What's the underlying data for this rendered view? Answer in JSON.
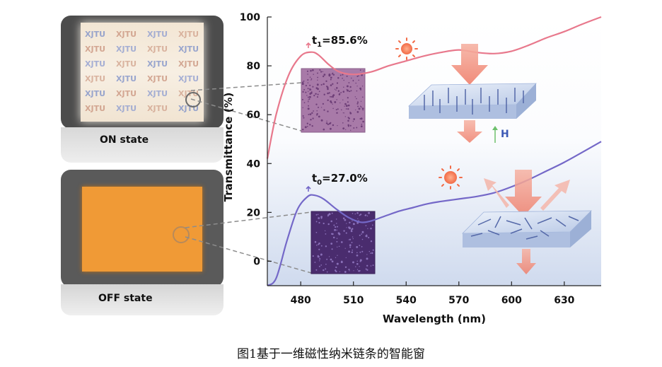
{
  "figure": {
    "caption": "图1基于一维磁性纳米链条的智能窗"
  },
  "photos": {
    "on_label": "ON state",
    "off_label": "OFF state",
    "watermark_text": "XJTU"
  },
  "annotations": {
    "t1": {
      "sym": "t",
      "sub": "1",
      "text": "=85.6%"
    },
    "t0": {
      "sym": "t",
      "sub": "0",
      "text": "=27.0%"
    },
    "field_label": "H"
  },
  "colors": {
    "on_curve": "#e8788c",
    "off_curve": "#7468c8",
    "off_panel": "#f09a36",
    "sun": "#f26b47",
    "arrow": "#f08c7a"
  },
  "chart_data": {
    "type": "line",
    "xlabel": "Wavelength (nm)",
    "ylabel": "Transmittance (%)",
    "xlim": [
      461,
      651
    ],
    "ylim": [
      -10,
      100
    ],
    "xticks": [
      480,
      510,
      540,
      570,
      600,
      630
    ],
    "yticks": [
      0,
      20,
      40,
      60,
      80,
      100
    ],
    "legend": "none",
    "grid": false,
    "series": [
      {
        "key": "on",
        "x": [
          461,
          466,
          473,
          480,
          486,
          490,
          496,
          502,
          510,
          520,
          530,
          540,
          550,
          560,
          570,
          580,
          590,
          600,
          610,
          620,
          630,
          640,
          651
        ],
        "y": [
          42,
          60,
          76,
          84,
          85.6,
          84.5,
          80.5,
          77.5,
          76.5,
          77.5,
          80,
          82,
          84,
          85.5,
          86.5,
          85.5,
          85,
          86,
          88.5,
          91.5,
          94,
          97,
          100
        ]
      },
      {
        "key": "off",
        "x": [
          461,
          466,
          472,
          478,
          484,
          488,
          493,
          500,
          507,
          514,
          520,
          528,
          536,
          544,
          552,
          560,
          570,
          580,
          590,
          600,
          610,
          620,
          630,
          640,
          651
        ],
        "y": [
          -10,
          -7,
          8,
          21,
          26.5,
          27,
          25.5,
          21.5,
          18,
          16,
          16.5,
          18.5,
          20.5,
          22,
          23.5,
          24.5,
          25.5,
          26.5,
          28,
          30.5,
          33.5,
          37,
          40.5,
          44.5,
          49
        ]
      }
    ]
  }
}
